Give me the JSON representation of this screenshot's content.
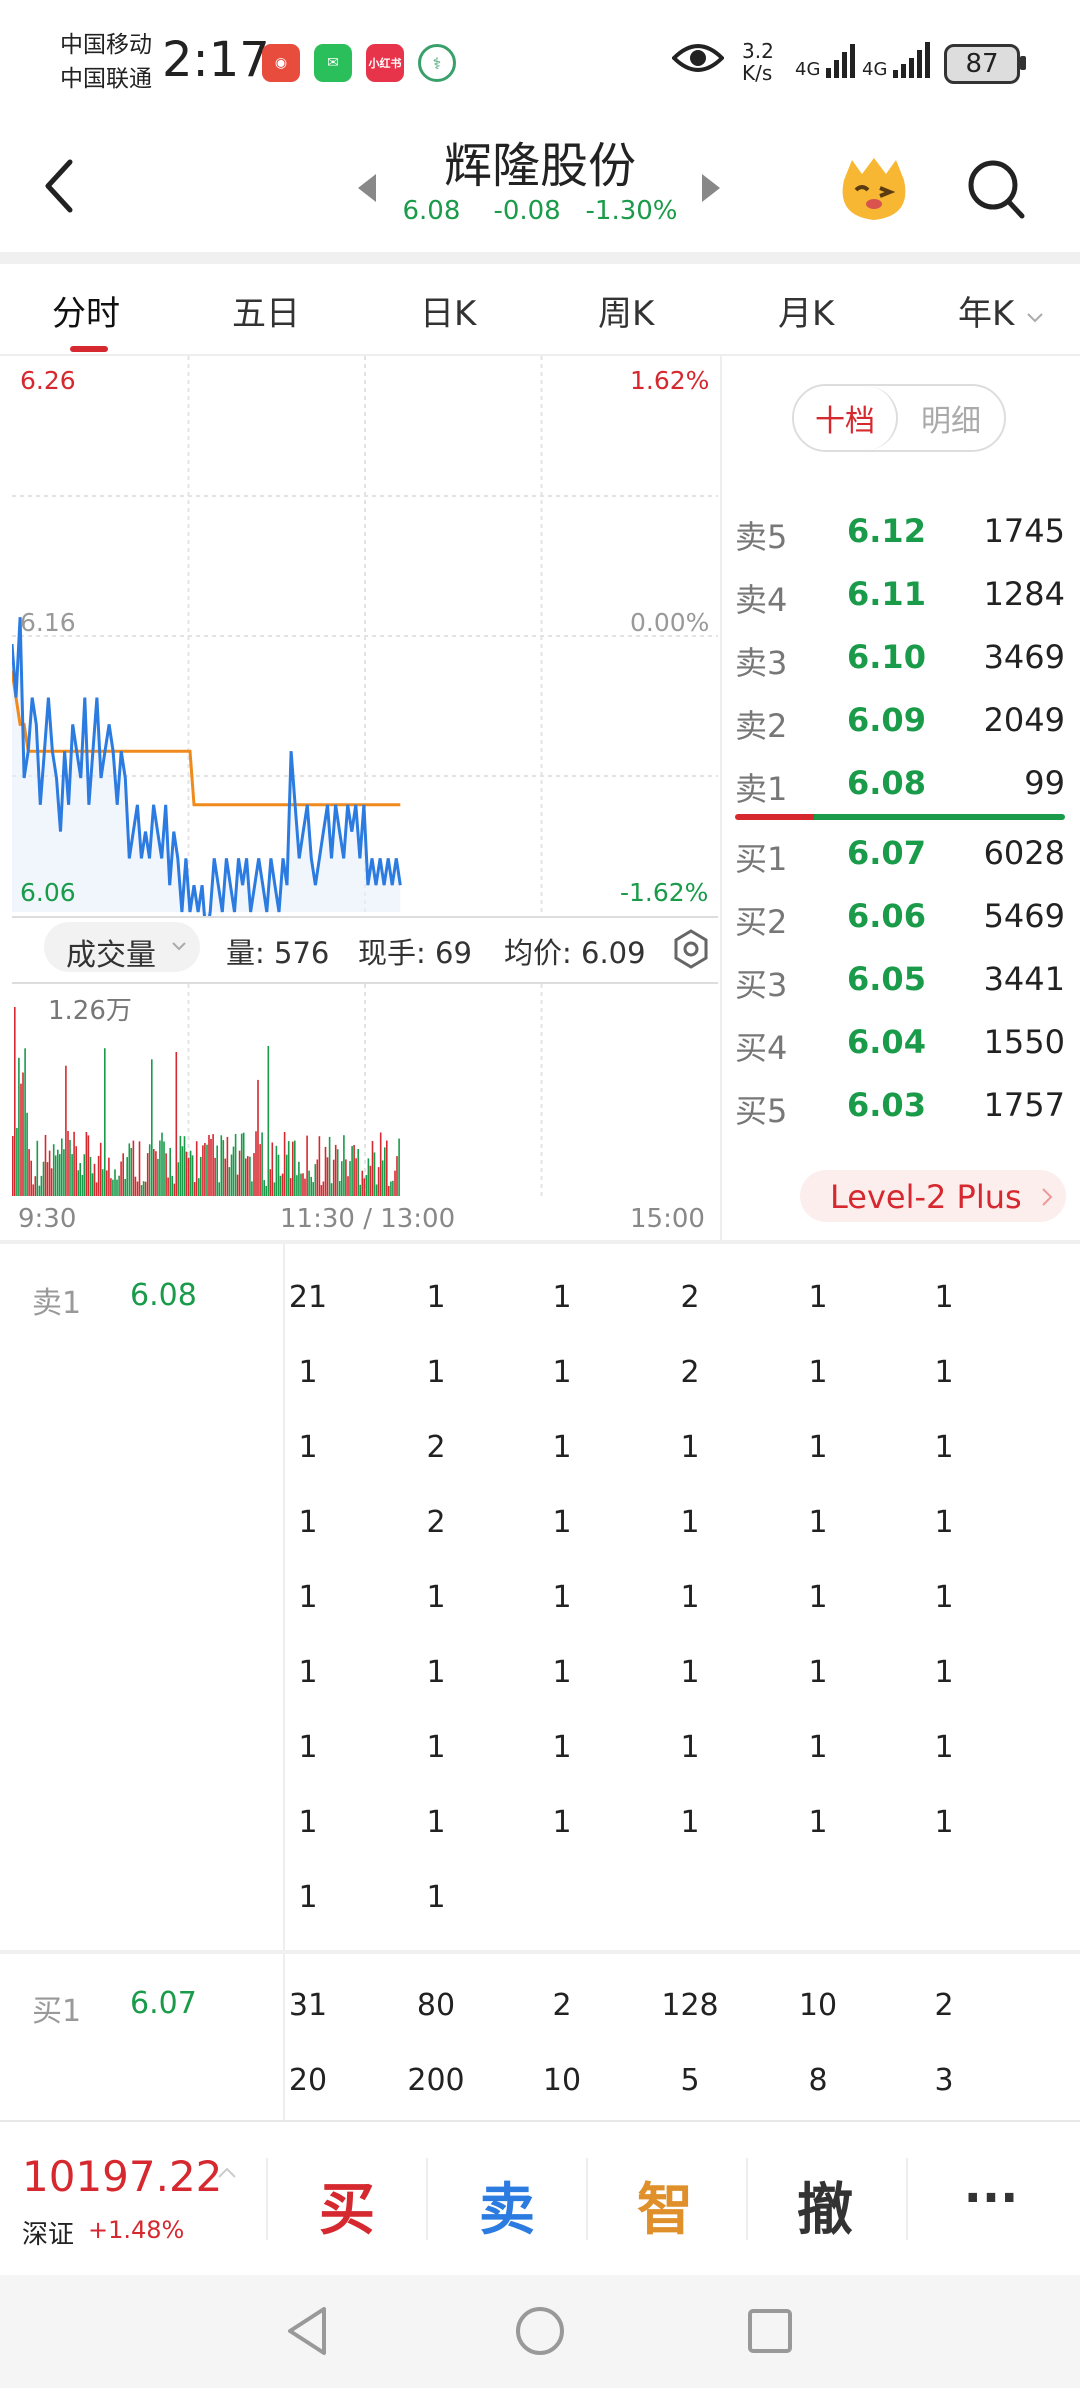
{
  "status_bar": {
    "carrier1": "中国移动",
    "carrier2": "中国联通",
    "time": "2:17",
    "net_speed_value": "3.2",
    "net_speed_unit": "K/s",
    "signal1": "4G",
    "signal2": "4G",
    "battery": "87"
  },
  "header": {
    "title": "辉隆股份",
    "price": "6.08",
    "change": "-0.08",
    "change_pct": "-1.30%"
  },
  "tabs": [
    {
      "label": "分时"
    },
    {
      "label": "五日"
    },
    {
      "label": "日K"
    },
    {
      "label": "周K"
    },
    {
      "label": "月K"
    },
    {
      "label": "年K"
    }
  ],
  "chart_labels": {
    "y_top": "6.26",
    "y_mid": "6.16",
    "y_bottom": "6.06",
    "pct_top": "1.62%",
    "pct_mid": "0.00%",
    "pct_bottom": "-1.62%",
    "volume_selector": "成交量",
    "volume_info": "量: 576",
    "current_hand": "现手: 69",
    "avg_price": "均价: 6.09",
    "volume_max": "1.26万",
    "time_start": "9:30",
    "time_mid": "11:30 / 13:00",
    "time_end": "15:00"
  },
  "chart_data": {
    "type": "line",
    "ylim": [
      6.06,
      6.26
    ],
    "price": [
      6.16,
      6.14,
      6.17,
      6.11,
      6.12,
      6.14,
      6.13,
      6.1,
      6.12,
      6.14,
      6.12,
      6.11,
      6.09,
      6.12,
      6.1,
      6.13,
      6.12,
      6.11,
      6.14,
      6.1,
      6.12,
      6.14,
      6.11,
      6.12,
      6.13,
      6.12,
      6.1,
      6.12,
      6.11,
      6.08,
      6.09,
      6.1,
      6.08,
      6.09,
      6.08,
      6.1,
      6.09,
      6.08,
      6.1,
      6.07,
      6.09,
      6.08,
      6.06,
      6.08,
      6.06,
      6.07,
      6.06,
      6.07,
      6.05,
      6.06,
      6.08,
      6.07,
      6.06,
      6.08,
      6.07,
      6.06,
      6.08,
      6.07,
      6.08,
      6.06,
      6.07,
      6.08,
      6.07,
      6.06,
      6.08,
      6.07,
      6.06,
      6.08,
      6.07,
      6.12,
      6.1,
      6.08,
      6.09,
      6.1,
      6.08,
      6.07,
      6.08,
      6.09,
      6.1,
      6.08,
      6.1,
      6.09,
      6.08,
      6.1,
      6.09,
      6.1,
      6.08,
      6.1,
      6.07,
      6.08,
      6.07,
      6.08,
      6.07,
      6.08,
      6.07,
      6.08,
      6.07
    ],
    "avg": [
      6.15,
      6.14,
      6.13,
      6.13,
      6.12,
      6.12,
      6.12,
      6.12,
      6.12,
      6.12,
      6.12,
      6.12,
      6.12,
      6.12,
      6.12,
      6.12,
      6.12,
      6.12,
      6.12,
      6.12,
      6.12,
      6.12,
      6.12,
      6.12,
      6.12,
      6.12,
      6.12,
      6.12,
      6.12,
      6.12,
      6.12,
      6.12,
      6.12,
      6.12,
      6.12,
      6.12,
      6.12,
      6.12,
      6.12,
      6.12,
      6.12,
      6.12,
      6.12,
      6.12,
      6.12,
      6.1,
      6.1,
      6.1,
      6.1,
      6.1,
      6.1,
      6.1,
      6.1,
      6.1,
      6.1,
      6.1,
      6.1,
      6.1,
      6.1,
      6.1,
      6.1,
      6.1,
      6.1,
      6.1,
      6.1,
      6.1,
      6.1,
      6.1,
      6.1,
      6.1,
      6.1,
      6.1,
      6.1,
      6.1,
      6.1,
      6.1,
      6.1,
      6.1,
      6.1,
      6.1,
      6.1,
      6.1,
      6.1,
      6.1,
      6.1,
      6.1,
      6.1,
      6.1,
      6.1,
      6.1,
      6.1,
      6.1,
      6.1,
      6.1,
      6.1,
      6.1,
      6.1
    ],
    "volume_max": 12600
  },
  "order_book": {
    "toggle_on": "十档",
    "toggle_off": "明细",
    "sell": [
      {
        "label": "卖5",
        "price": "6.12",
        "vol": "1745"
      },
      {
        "label": "卖4",
        "price": "6.11",
        "vol": "1284"
      },
      {
        "label": "卖3",
        "price": "6.10",
        "vol": "3469"
      },
      {
        "label": "卖2",
        "price": "6.09",
        "vol": "2049"
      },
      {
        "label": "卖1",
        "price": "6.08",
        "vol": "99"
      }
    ],
    "buy": [
      {
        "label": "买1",
        "price": "6.07",
        "vol": "6028"
      },
      {
        "label": "买2",
        "price": "6.06",
        "vol": "5469"
      },
      {
        "label": "买3",
        "price": "6.05",
        "vol": "3441"
      },
      {
        "label": "买4",
        "price": "6.04",
        "vol": "1550"
      },
      {
        "label": "买5",
        "price": "6.03",
        "vol": "1757"
      }
    ],
    "level2": "Level-2 Plus"
  },
  "queue_sell": {
    "label": "卖1",
    "price": "6.08",
    "rows": [
      [
        "21",
        "1",
        "1",
        "2",
        "1",
        "1"
      ],
      [
        "1",
        "1",
        "1",
        "2",
        "1",
        "1"
      ],
      [
        "1",
        "2",
        "1",
        "1",
        "1",
        "1"
      ],
      [
        "1",
        "2",
        "1",
        "1",
        "1",
        "1"
      ],
      [
        "1",
        "1",
        "1",
        "1",
        "1",
        "1"
      ],
      [
        "1",
        "1",
        "1",
        "1",
        "1",
        "1"
      ],
      [
        "1",
        "1",
        "1",
        "1",
        "1",
        "1"
      ],
      [
        "1",
        "1",
        "1",
        "1",
        "1",
        "1"
      ],
      [
        "1",
        "1"
      ]
    ]
  },
  "queue_buy": {
    "label": "买1",
    "price": "6.07",
    "rows": [
      [
        "31",
        "80",
        "2",
        "128",
        "10",
        "2"
      ],
      [
        "20",
        "200",
        "10",
        "5",
        "8",
        "3"
      ]
    ]
  },
  "bottom_bar": {
    "index_value": "10197.22",
    "index_name": "深证",
    "index_change": "+1.48%",
    "buy": "买",
    "sell": "卖",
    "smart": "智",
    "cancel": "撤",
    "more": "···"
  },
  "colors": {
    "up": "#d6292f",
    "down": "#1a9b4a",
    "price_line": "#2b7be0",
    "avg_line": "#f08a1c",
    "sell_btn": "#2b7be0",
    "smart_btn": "#e0902a",
    "cancel_btn": "#333333"
  }
}
